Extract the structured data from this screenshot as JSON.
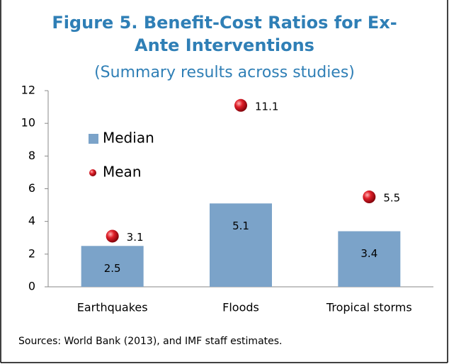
{
  "chart_data": {
    "type": "bar",
    "title": "Figure 5. Benefit-Cost Ratios for Ex-Ante Interventions",
    "subtitle": "(Summary results across studies)",
    "categories": [
      "Earthquakes",
      "Floods",
      "Tropical storms"
    ],
    "series": [
      {
        "name": "Median",
        "type": "bar",
        "color": "#7ba3c9",
        "values": [
          2.5,
          5.1,
          3.4
        ]
      },
      {
        "name": "Mean",
        "type": "scatter",
        "color": "#d0121b",
        "values": [
          3.1,
          11.1,
          5.5
        ]
      }
    ],
    "ylim": [
      0,
      12
    ],
    "yticks": [
      0,
      2,
      4,
      6,
      8,
      10,
      12
    ],
    "legend": "upper left",
    "source": "Sources: World Bank (2013), and IMF staff estimates."
  }
}
